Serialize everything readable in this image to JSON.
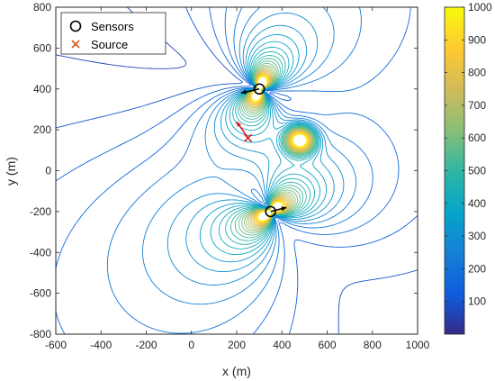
{
  "chart_data": {
    "type": "contour",
    "xlabel": "x (m)",
    "ylabel": "y (m)",
    "xlim": [
      -600,
      1000
    ],
    "ylim": [
      -800,
      800
    ],
    "xticks": [
      "-600",
      "-400",
      "-200",
      "0",
      "200",
      "400",
      "600",
      "800",
      "1000"
    ],
    "yticks": [
      "800",
      "600",
      "400",
      "200",
      "0",
      "-200",
      "-400",
      "-600",
      "-800"
    ],
    "colorbar": {
      "range": [
        0,
        1000
      ],
      "ticks": [
        "1000",
        "900",
        "800",
        "700",
        "600",
        "500",
        "400",
        "300",
        "200",
        "100"
      ],
      "colormap": "parula"
    },
    "legend": {
      "position": "top-left",
      "entries": [
        {
          "label": "Sensors",
          "marker": "circle",
          "color": "#000000"
        },
        {
          "label": "Source",
          "marker": "x",
          "color": "#d95319"
        }
      ]
    },
    "sensors": [
      {
        "x": 300,
        "y": 400,
        "heading": [
          -80,
          -20
        ]
      },
      {
        "x": 350,
        "y": -200,
        "heading": [
          70,
          20
        ]
      }
    ],
    "source": {
      "x": 250,
      "y": 160,
      "arrow_to": [
        200,
        240
      ]
    },
    "grid": false
  }
}
